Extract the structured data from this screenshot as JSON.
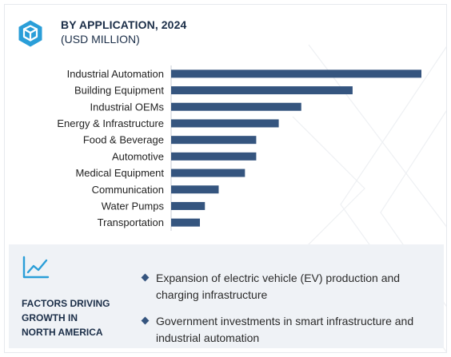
{
  "header": {
    "title": "BY APPLICATION, 2024",
    "subtitle": "(USD MILLION)"
  },
  "icons": {
    "logo": "hexagon-cube-logo-icon",
    "trend": "line-chart-trend-icon",
    "bullet": "diamond-bullet-icon"
  },
  "colors": {
    "bar": "#35557f",
    "title": "#1b2e48",
    "panel_background": "#eff2f6"
  },
  "chart_data": {
    "type": "bar",
    "orientation": "horizontal",
    "title": "BY APPLICATION, 2024",
    "subtitle": "(USD MILLION)",
    "categories": [
      "Industrial Automation",
      "Building Equipment",
      "Industrial OEMs",
      "Energy & Infrastructure",
      "Food & Beverage",
      "Automotive",
      "Medical Equipment",
      "Communication",
      "Water Pumps",
      "Transportation"
    ],
    "values": [
      100,
      72.5,
      52,
      43,
      34,
      34,
      29.5,
      19,
      13.5,
      11.5
    ],
    "value_axis_shown": false,
    "grid": false,
    "legend": "none"
  },
  "factors": {
    "heading_lines": [
      "FACTORS DRIVING",
      "GROWTH IN",
      "NORTH AMERICA"
    ],
    "bullets": [
      "Expansion of electric vehicle (EV) production and charging infrastructure",
      "Government investments in smart infrastructure and industrial automation"
    ]
  }
}
